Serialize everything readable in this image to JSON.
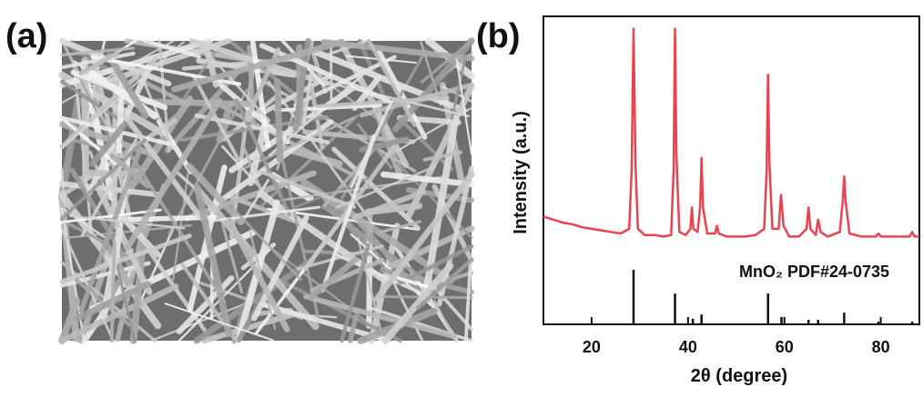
{
  "panels": [
    "(a)",
    "(b)"
  ],
  "chart_data": {
    "type": "line",
    "xlabel": "2θ (degree)",
    "ylabel": "Intensity (a.u.)",
    "xlim": [
      10,
      88
    ],
    "xticks": [
      20,
      40,
      60,
      80
    ],
    "ylim": [
      0,
      100
    ],
    "series": [
      {
        "type": "line",
        "color": "#e8434f",
        "x": [
          10,
          12,
          14,
          16,
          18,
          20,
          22,
          24,
          26,
          27.8,
          28.3,
          28.7,
          29.1,
          29.6,
          31,
          33,
          35,
          36.5,
          37,
          37.3,
          37.6,
          38.2,
          39.5,
          40.5,
          40.8,
          41.1,
          42,
          42.5,
          42.8,
          43.1,
          44,
          45.6,
          46,
          46.4,
          48,
          50,
          52,
          54,
          55.8,
          56.3,
          56.6,
          56.9,
          57.5,
          58.8,
          59.3,
          59.8,
          61,
          63,
          64.6,
          65,
          65.4,
          66.5,
          67,
          67.5,
          69,
          71.5,
          72.1,
          72.4,
          72.7,
          73.5,
          76,
          79,
          79.5,
          80,
          83,
          86,
          86.5,
          87,
          88
        ],
        "values": [
          35,
          34,
          33,
          32.5,
          31.5,
          31,
          30.5,
          30,
          29.5,
          31,
          50,
          96,
          52,
          31,
          29,
          29,
          28.5,
          29,
          50,
          96,
          55,
          30,
          29,
          31,
          38,
          31,
          30,
          38,
          54,
          38,
          29.5,
          29.5,
          32,
          29.5,
          28.5,
          28.5,
          28.5,
          29,
          31,
          50,
          81,
          52,
          31,
          31,
          42,
          32,
          28.5,
          28.5,
          31,
          38,
          31,
          29,
          34,
          30,
          28.5,
          30,
          40,
          48,
          40,
          29.5,
          28.5,
          28.5,
          29.5,
          28.5,
          28.5,
          28.5,
          30,
          28.5,
          28.5
        ]
      },
      {
        "type": "stick",
        "color": "#111111",
        "name": "MnO₂ PDF#24-0735",
        "x": [
          28.7,
          37.3,
          41,
          42.8,
          56.6,
          59.4,
          65,
          67,
          72.4,
          79.5,
          86.5
        ],
        "values": [
          17.7,
          10,
          1.8,
          3.2,
          10,
          2.4,
          1.5,
          1.5,
          3.8,
          0.9,
          0.9
        ]
      }
    ]
  }
}
